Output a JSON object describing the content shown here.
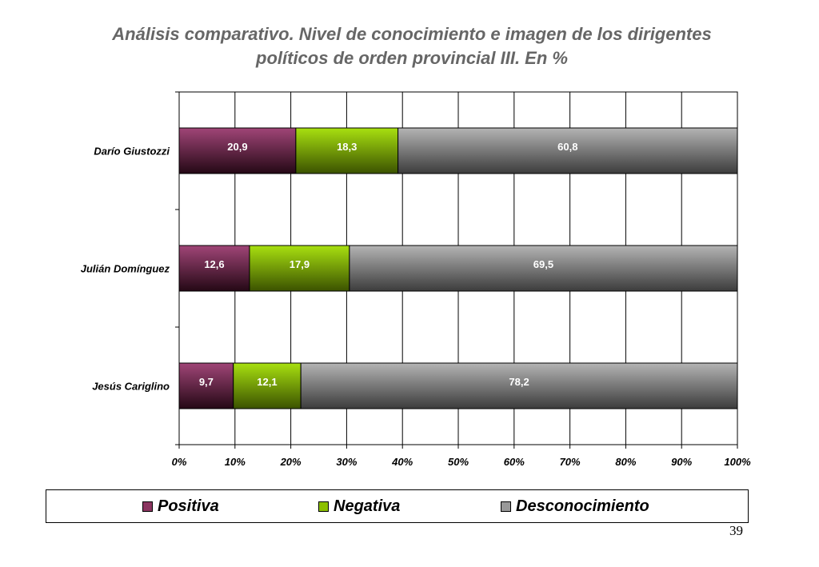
{
  "title_lines": [
    "Análisis comparativo. Nivel de conocimiento e imagen de los dirigentes",
    "políticos de orden provincial III.  En %"
  ],
  "page_number": "39",
  "legend": [
    {
      "label": "Positiva",
      "color": "#8B3560",
      "icon": "legend-swatch-icon"
    },
    {
      "label": "Negativa",
      "color": "#8CC000",
      "icon": "legend-swatch-icon"
    },
    {
      "label": "Desconocimiento",
      "color": "#999999",
      "icon": "legend-swatch-icon"
    }
  ],
  "chart_data": {
    "type": "bar",
    "orientation": "horizontal",
    "stacked": true,
    "title": "Análisis comparativo. Nivel de conocimiento e imagen de los dirigentes políticos de orden provincial III.  En %",
    "categories": [
      "Darío Giustozzi",
      "Julián Domínguez",
      "Jesús Cariglino"
    ],
    "series": [
      {
        "name": "Positiva",
        "values": [
          20.9,
          12.6,
          9.7
        ],
        "labels": [
          "20,9",
          "12,6",
          "9,7"
        ],
        "color": "#8B3560"
      },
      {
        "name": "Negativa",
        "values": [
          18.3,
          17.9,
          12.1
        ],
        "labels": [
          "18,3",
          "17,9",
          "12,1"
        ],
        "color": "#8CC000"
      },
      {
        "name": "Desconocimiento",
        "values": [
          60.8,
          69.5,
          78.2
        ],
        "labels": [
          "60,8",
          "69,5",
          "78,2"
        ],
        "color": "#999999"
      }
    ],
    "xlim": [
      0,
      100
    ],
    "x_ticks": [
      "0%",
      "10%",
      "20%",
      "30%",
      "40%",
      "50%",
      "60%",
      "70%",
      "80%",
      "90%",
      "100%"
    ],
    "grid": true,
    "legend_position": "bottom"
  }
}
